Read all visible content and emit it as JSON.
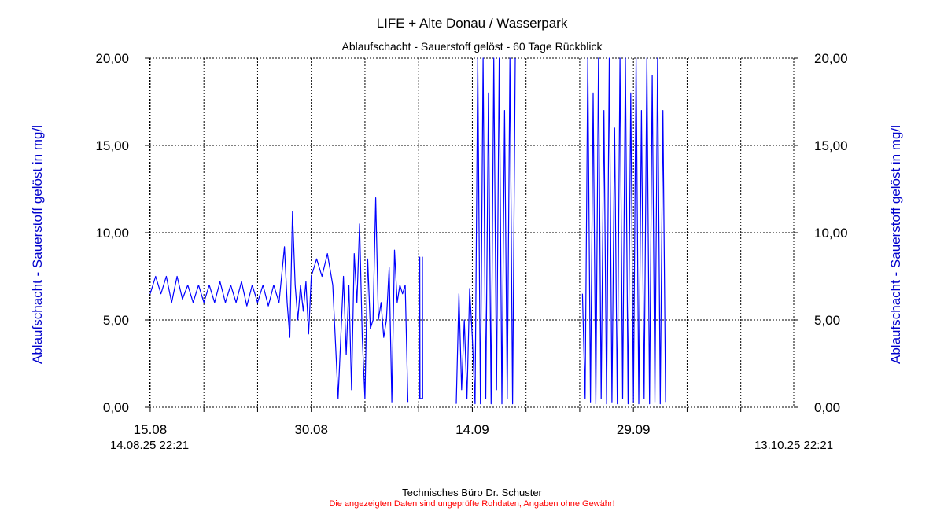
{
  "header": {
    "title": "LIFE + Alte Donau / Wasserpark",
    "subtitle": "Ablaufschacht - Sauerstoff gelöst - 60 Tage Rückblick"
  },
  "footer": {
    "credit": "Technisches Büro Dr. Schuster",
    "disclaimer": "Die angezeigten Daten sind ungeprüfte Rohdaten, Angaben ohne Gewähr!"
  },
  "colors": {
    "series": "#0000ff",
    "axis_label": "#0000cc",
    "grid": "#000000",
    "disclaimer": "#ff0000"
  },
  "chart_data": {
    "type": "line",
    "title": "LIFE + Alte Donau / Wasserpark",
    "subtitle": "Ablaufschacht - Sauerstoff gelöst - 60 Tage Rückblick",
    "ylabel_left": "Ablaufschacht - Sauerstoff gelöst in mg/l",
    "ylabel_right": "Ablaufschacht - Sauerstoff gelöst in mg/l",
    "ylim": [
      0,
      20
    ],
    "yticks": [
      0,
      5,
      10,
      15,
      20
    ],
    "ytick_labels": [
      "0,00",
      "5,00",
      "10,00",
      "15,00",
      "20,00"
    ],
    "xlim": [
      "2025-08-14 22:21",
      "2025-10-13 22:21"
    ],
    "xrange_labels": {
      "start": "14.08.25 22:21",
      "end": "13.10.25 22:21"
    },
    "xticks": [
      {
        "date": "2025-08-15",
        "label": "15.08"
      },
      {
        "date": "2025-08-20",
        "label": ""
      },
      {
        "date": "2025-08-25",
        "label": ""
      },
      {
        "date": "2025-08-30",
        "label": "30.08"
      },
      {
        "date": "2025-09-04",
        "label": ""
      },
      {
        "date": "2025-09-09",
        "label": ""
      },
      {
        "date": "2025-09-14",
        "label": "14.09"
      },
      {
        "date": "2025-09-19",
        "label": ""
      },
      {
        "date": "2025-09-24",
        "label": ""
      },
      {
        "date": "2025-09-29",
        "label": "29.09"
      },
      {
        "date": "2025-10-04",
        "label": ""
      },
      {
        "date": "2025-10-09",
        "label": ""
      }
    ],
    "grid": true,
    "grid_style": "dotted",
    "legend": "none",
    "series": [
      {
        "segments": [
          {
            "x": [
              "2025-08-15 00:00",
              "2025-08-15 12:00",
              "2025-08-16 00:00",
              "2025-08-16 12:00",
              "2025-08-17 00:00",
              "2025-08-17 12:00",
              "2025-08-18 00:00",
              "2025-08-18 12:00",
              "2025-08-19 00:00",
              "2025-08-19 12:00",
              "2025-08-20 00:00",
              "2025-08-20 12:00",
              "2025-08-21 00:00",
              "2025-08-21 12:00",
              "2025-08-22 00:00",
              "2025-08-22 12:00",
              "2025-08-23 00:00",
              "2025-08-23 12:00",
              "2025-08-24 00:00",
              "2025-08-24 12:00",
              "2025-08-25 00:00",
              "2025-08-25 12:00",
              "2025-08-26 00:00",
              "2025-08-26 12:00",
              "2025-08-27 00:00",
              "2025-08-27 12:00",
              "2025-08-27 18:00",
              "2025-08-28 00:00",
              "2025-08-28 06:00",
              "2025-08-28 12:00",
              "2025-08-28 18:00",
              "2025-08-29 00:00",
              "2025-08-29 06:00",
              "2025-08-29 12:00",
              "2025-08-29 18:00",
              "2025-08-30 00:00",
              "2025-08-30 12:00",
              "2025-08-31 00:00",
              "2025-08-31 12:00",
              "2025-09-01 00:00",
              "2025-09-01 12:00",
              "2025-09-02 00:00",
              "2025-09-02 06:00",
              "2025-09-02 12:00",
              "2025-09-02 18:00",
              "2025-09-03 00:00",
              "2025-09-03 06:00",
              "2025-09-03 12:00",
              "2025-09-03 18:00",
              "2025-09-04 00:00",
              "2025-09-04 06:00",
              "2025-09-04 12:00",
              "2025-09-04 18:00",
              "2025-09-05 00:00",
              "2025-09-05 06:00",
              "2025-09-05 12:00",
              "2025-09-05 18:00",
              "2025-09-06 00:00",
              "2025-09-06 06:00",
              "2025-09-06 12:00",
              "2025-09-06 18:00",
              "2025-09-07 00:00",
              "2025-09-07 06:00",
              "2025-09-07 12:00",
              "2025-09-07 18:00",
              "2025-09-08 00:00"
            ],
            "y": [
              6.5,
              7.5,
              6.5,
              7.5,
              6.0,
              7.5,
              6.2,
              7.0,
              6.0,
              7.0,
              6.0,
              7.0,
              6.0,
              7.2,
              6.0,
              7.0,
              6.0,
              7.2,
              5.8,
              7.0,
              6.0,
              7.0,
              5.8,
              7.0,
              6.0,
              9.2,
              6.0,
              4.0,
              11.2,
              7.0,
              5.0,
              7.0,
              5.5,
              7.2,
              4.2,
              7.5,
              8.5,
              7.5,
              8.8,
              7.0,
              0.5,
              7.5,
              3.0,
              7.0,
              1.0,
              8.8,
              6.0,
              10.5,
              4.0,
              0.5,
              8.5,
              4.5,
              5.0,
              12.0,
              5.0,
              6.0,
              4.0,
              5.0,
              8.0,
              0.3,
              9.0,
              6.0,
              7.0,
              6.5,
              7.0,
              0.3
            ]
          },
          {
            "x": [
              "2025-09-09 02:00",
              "2025-09-09 02:30",
              "2025-09-09 03:00",
              "2025-09-09 08:00",
              "2025-09-09 08:30",
              "2025-09-09 09:00"
            ],
            "y": [
              0.5,
              8.6,
              0.5,
              0.5,
              8.6,
              0.5
            ]
          },
          {
            "x": [
              "2025-09-12 12:00",
              "2025-09-12 18:00",
              "2025-09-13 00:00",
              "2025-09-13 06:00",
              "2025-09-13 12:00",
              "2025-09-13 18:00",
              "2025-09-14 00:00",
              "2025-09-14 06:00",
              "2025-09-14 12:00",
              "2025-09-14 18:00",
              "2025-09-15 00:00",
              "2025-09-15 06:00",
              "2025-09-15 12:00",
              "2025-09-15 18:00",
              "2025-09-16 00:00",
              "2025-09-16 06:00",
              "2025-09-16 12:00",
              "2025-09-16 18:00",
              "2025-09-17 00:00",
              "2025-09-17 06:00",
              "2025-09-17 12:00",
              "2025-09-17 18:00",
              "2025-09-18 00:00"
            ],
            "y": [
              0.2,
              6.5,
              1.0,
              5.0,
              0.5,
              6.8,
              4.0,
              0.2,
              20.0,
              0.2,
              20.0,
              0.5,
              18.0,
              0.2,
              20.0,
              1.0,
              20.0,
              0.2,
              17.0,
              0.5,
              20.0,
              0.2,
              20.0
            ]
          },
          {
            "x": [
              "2025-09-24 06:00",
              "2025-09-24 12:00",
              "2025-09-24 18:00",
              "2025-09-25 00:00",
              "2025-09-25 06:00",
              "2025-09-25 12:00",
              "2025-09-25 18:00",
              "2025-09-26 00:00",
              "2025-09-26 06:00",
              "2025-09-26 12:00",
              "2025-09-26 18:00",
              "2025-09-27 00:00",
              "2025-09-27 06:00",
              "2025-09-27 12:00",
              "2025-09-27 18:00",
              "2025-09-28 00:00",
              "2025-09-28 06:00",
              "2025-09-28 12:00",
              "2025-09-28 18:00",
              "2025-09-29 00:00",
              "2025-09-29 06:00",
              "2025-09-29 12:00",
              "2025-09-29 18:00",
              "2025-09-30 00:00",
              "2025-09-30 06:00",
              "2025-09-30 12:00",
              "2025-09-30 18:00",
              "2025-10-01 00:00",
              "2025-10-01 06:00",
              "2025-10-01 12:00",
              "2025-10-01 18:00",
              "2025-10-02 00:00"
            ],
            "y": [
              6.5,
              0.5,
              20.0,
              0.3,
              18.0,
              0.2,
              20.0,
              0.5,
              17.0,
              0.2,
              20.0,
              0.3,
              16.0,
              0.2,
              20.0,
              0.5,
              20.0,
              0.2,
              18.0,
              0.3,
              20.0,
              0.2,
              17.0,
              0.5,
              20.0,
              0.2,
              19.0,
              0.3,
              20.0,
              0.2,
              17.0,
              0.3
            ]
          }
        ]
      }
    ]
  }
}
